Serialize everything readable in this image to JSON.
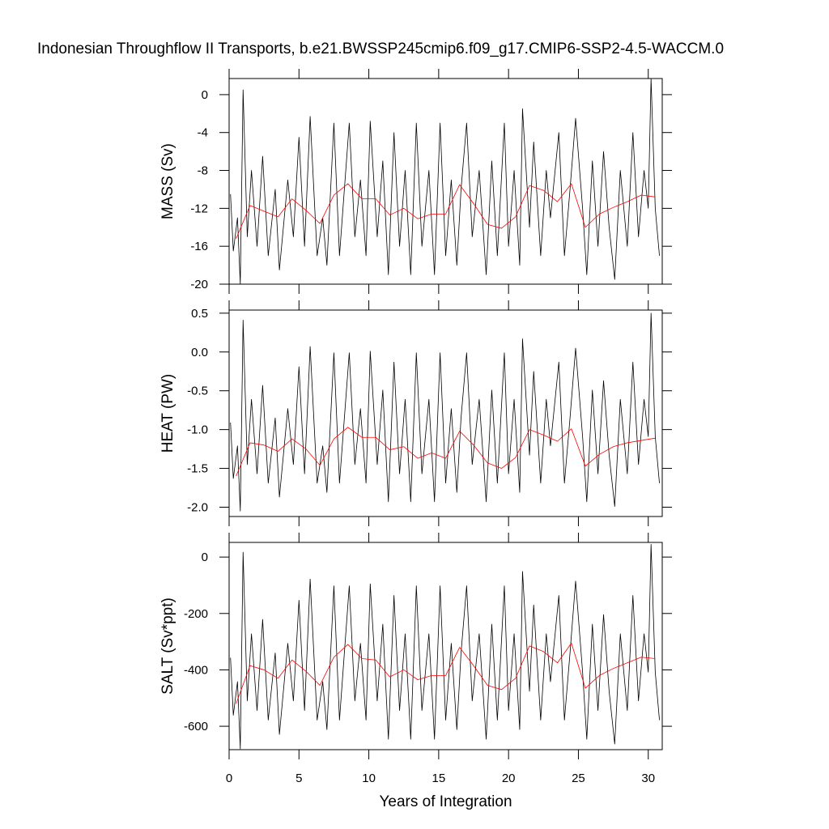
{
  "chart_data": [
    {
      "type": "line",
      "title": "Indonesian Throughflow II Transports, b.e21.BWSSP245cmip6.f09_g17.CMIP6-SSP2-4.5-WACCM.0",
      "y_label": "MASS (Sv)",
      "xlim": [
        0,
        31
      ],
      "xticks": [
        0,
        5,
        10,
        15,
        20,
        25,
        30
      ],
      "ylim": [
        -20,
        1.7
      ],
      "yticks": [
        0,
        -4,
        -8,
        -12,
        -16,
        -20
      ],
      "series": [
        {
          "color": "#000000",
          "x": [
            0.1,
            0.3,
            0.6,
            0.8,
            1.0,
            1.3,
            1.6,
            2.0,
            2.4,
            2.8,
            3.3,
            3.6,
            4.2,
            4.6,
            5.0,
            5.4,
            5.8,
            6.3,
            6.7,
            7.0,
            7.5,
            7.9,
            8.3,
            8.6,
            9.0,
            9.4,
            9.8,
            10.1,
            10.6,
            11.0,
            11.4,
            11.8,
            12.2,
            12.6,
            13.0,
            13.4,
            13.8,
            14.3,
            14.7,
            15.1,
            15.5,
            15.9,
            16.3,
            16.6,
            17.0,
            17.4,
            17.9,
            18.4,
            18.8,
            19.2,
            19.7,
            20.0,
            20.4,
            20.8,
            21.0,
            21.5,
            21.8,
            22.3,
            22.7,
            23.0,
            23.6,
            24.0,
            24.4,
            24.8,
            25.3,
            25.6,
            26.0,
            26.4,
            26.8,
            27.2,
            27.6,
            28.0,
            28.5,
            28.9,
            29.3,
            29.7,
            30.0,
            30.2,
            30.5,
            30.8
          ],
          "values": [
            -10.5,
            -16.5,
            -13,
            -20,
            0.5,
            -15,
            -8,
            -16,
            -6.5,
            -17,
            -10,
            -18.5,
            -9,
            -15,
            -4.5,
            -16,
            -2.3,
            -17,
            -13,
            -18,
            -3,
            -17,
            -9,
            -3,
            -15,
            -9,
            -17,
            -2.8,
            -15,
            -7,
            -19,
            -4,
            -16,
            -8,
            -19,
            -3,
            -16,
            -8,
            -19,
            -3,
            -17,
            -9,
            -18,
            -10,
            -3,
            -15,
            -8,
            -19,
            -7,
            -17,
            -3,
            -16,
            -8,
            -18,
            -1.5,
            -14,
            -5,
            -17,
            -8,
            -13,
            -4,
            -17,
            -10,
            -2.5,
            -12,
            -19,
            -7,
            -16,
            -6,
            -14,
            -19.5,
            -8,
            -16,
            -4,
            -15,
            -8,
            -12,
            1.7,
            -12,
            -17
          ]
        },
        {
          "color": "#ff0000",
          "x": [
            0.5,
            1.5,
            2.5,
            3.5,
            4.5,
            5.5,
            6.5,
            7.5,
            8.5,
            9.5,
            10.5,
            11.5,
            12.5,
            13.5,
            14.5,
            15.5,
            16.5,
            17.5,
            18.5,
            19.5,
            20.5,
            21.5,
            22.5,
            23.5,
            24.5,
            25.5,
            26.5,
            27.5,
            28.5,
            29.5,
            30.5
          ],
          "values": [
            -15.2,
            -11.7,
            -12.3,
            -12.9,
            -11,
            -12.2,
            -13.6,
            -10.6,
            -9.4,
            -11,
            -11,
            -12.7,
            -12,
            -13.1,
            -12.6,
            -12.6,
            -9.5,
            -11.5,
            -13.7,
            -14.1,
            -12.9,
            -9.6,
            -10.1,
            -11.3,
            -9.4,
            -14,
            -12.6,
            -11.9,
            -11.3,
            -10.6,
            -10.8
          ]
        }
      ]
    },
    {
      "type": "line",
      "y_label": "HEAT (PW)",
      "xlim": [
        0,
        31
      ],
      "xticks": [
        0,
        5,
        10,
        15,
        20,
        25,
        30
      ],
      "ylim": [
        -2.12,
        0.54
      ],
      "yticks": [
        0.5,
        {
          "value": 0,
          "label": "0.0"
        },
        -0.5,
        {
          "value": -1,
          "label": "-1.0"
        },
        -1.5,
        {
          "value": -2,
          "label": "-2.0"
        }
      ],
      "series": [
        {
          "color": "#000000",
          "x": [
            0.1,
            0.3,
            0.6,
            0.8,
            1.0,
            1.3,
            1.6,
            2.0,
            2.4,
            2.8,
            3.3,
            3.6,
            4.2,
            4.6,
            5.0,
            5.4,
            5.8,
            6.3,
            6.7,
            7.0,
            7.5,
            7.9,
            8.3,
            8.6,
            9.0,
            9.4,
            9.8,
            10.1,
            10.6,
            11.0,
            11.4,
            11.8,
            12.2,
            12.6,
            13.0,
            13.4,
            13.8,
            14.3,
            14.7,
            15.1,
            15.5,
            15.9,
            16.3,
            16.6,
            17.0,
            17.4,
            17.9,
            18.4,
            18.8,
            19.2,
            19.7,
            20.0,
            20.4,
            20.8,
            21.0,
            21.5,
            21.8,
            22.3,
            22.7,
            23.0,
            23.6,
            24.0,
            24.4,
            24.8,
            25.3,
            25.6,
            26.0,
            26.4,
            26.8,
            27.2,
            27.6,
            28.0,
            28.5,
            28.9,
            29.3,
            29.7,
            30.0,
            30.2,
            30.5,
            30.8
          ],
          "values": [
            -0.91,
            -1.63,
            -1.21,
            -2.05,
            0.41,
            -1.45,
            -0.61,
            -1.57,
            -0.43,
            -1.69,
            -0.85,
            -1.87,
            -0.73,
            -1.45,
            -0.19,
            -1.57,
            0.07,
            -1.69,
            -1.21,
            -1.81,
            -0.01,
            -1.69,
            -0.73,
            -0.01,
            -1.45,
            -0.73,
            -1.69,
            0.01,
            -1.45,
            -0.49,
            -1.93,
            -0.13,
            -1.57,
            -0.61,
            -1.93,
            -0.01,
            -1.57,
            -0.61,
            -1.93,
            -0.01,
            -1.69,
            -0.73,
            -1.81,
            -0.85,
            -0.01,
            -1.45,
            -0.61,
            -1.93,
            -0.49,
            -1.69,
            -0.01,
            -1.57,
            -0.61,
            -1.81,
            0.17,
            -1.33,
            -0.25,
            -1.69,
            -0.61,
            -1.21,
            -0.13,
            -1.69,
            -0.85,
            0.05,
            -1.09,
            -1.93,
            -0.49,
            -1.57,
            -0.37,
            -1.33,
            -1.99,
            -0.61,
            -1.57,
            -0.13,
            -1.45,
            -0.61,
            -1.09,
            0.5,
            -1.09,
            -1.69
          ]
        },
        {
          "color": "#ff0000",
          "x": [
            0.5,
            1.5,
            2.5,
            3.5,
            4.5,
            5.5,
            6.5,
            7.5,
            8.5,
            9.5,
            10.5,
            11.5,
            12.5,
            13.5,
            14.5,
            15.5,
            16.5,
            17.5,
            18.5,
            19.5,
            20.5,
            21.5,
            22.5,
            23.5,
            24.5,
            25.5,
            26.5,
            27.5,
            28.5,
            29.5,
            30.5
          ],
          "values": [
            -1.6,
            -1.17,
            -1.2,
            -1.28,
            -1.12,
            -1.25,
            -1.46,
            -1.12,
            -0.97,
            -1.1,
            -1.1,
            -1.26,
            -1.22,
            -1.37,
            -1.3,
            -1.37,
            -1.02,
            -1.2,
            -1.43,
            -1.5,
            -1.36,
            -1.0,
            -1.07,
            -1.15,
            -0.99,
            -1.47,
            -1.32,
            -1.22,
            -1.17,
            -1.14,
            -1.11
          ]
        }
      ]
    },
    {
      "type": "line",
      "y_label": "SALT (Sv*ppt)",
      "x_label": "Years of Integration",
      "xlim": [
        0,
        31
      ],
      "xticks": [
        0,
        5,
        10,
        15,
        20,
        25,
        30
      ],
      "ylim": [
        -683,
        52
      ],
      "yticks": [
        0,
        -200,
        -400,
        -600
      ],
      "series": [
        {
          "color": "#000000",
          "x": [
            0.1,
            0.3,
            0.6,
            0.8,
            1.0,
            1.3,
            1.6,
            2.0,
            2.4,
            2.8,
            3.3,
            3.6,
            4.2,
            4.6,
            5.0,
            5.4,
            5.8,
            6.3,
            6.7,
            7.0,
            7.5,
            7.9,
            8.3,
            8.6,
            9.0,
            9.4,
            9.8,
            10.1,
            10.6,
            11.0,
            11.4,
            11.8,
            12.2,
            12.6,
            13.0,
            13.4,
            13.8,
            14.3,
            14.7,
            15.1,
            15.5,
            15.9,
            16.3,
            16.6,
            17.0,
            17.4,
            17.9,
            18.4,
            18.8,
            19.2,
            19.7,
            20.0,
            20.4,
            20.8,
            21.0,
            21.5,
            21.8,
            22.3,
            22.7,
            23.0,
            23.6,
            24.0,
            24.4,
            24.8,
            25.3,
            25.6,
            26.0,
            26.4,
            26.8,
            27.2,
            27.6,
            28.0,
            28.5,
            28.9,
            29.3,
            29.7,
            30.0,
            30.2,
            30.5,
            30.8
          ],
          "values": [
            -357,
            -561,
            -442,
            -680,
            17,
            -510,
            -272,
            -544,
            -221,
            -578,
            -340,
            -629,
            -306,
            -510,
            -153,
            -544,
            -78,
            -578,
            -442,
            -612,
            -102,
            -578,
            -306,
            -102,
            -510,
            -306,
            -578,
            -95,
            -510,
            -238,
            -646,
            -136,
            -544,
            -272,
            -646,
            -102,
            -544,
            -272,
            -646,
            -102,
            -578,
            -306,
            -612,
            -340,
            -102,
            -510,
            -272,
            -646,
            -238,
            -578,
            -102,
            -544,
            -272,
            -612,
            -51,
            -476,
            -170,
            -578,
            -272,
            -442,
            -136,
            -578,
            -340,
            -85,
            -408,
            -646,
            -238,
            -544,
            -204,
            -476,
            -663,
            -272,
            -544,
            -136,
            -510,
            -272,
            -408,
            45,
            -408,
            -578
          ]
        },
        {
          "color": "#ff0000",
          "x": [
            0.5,
            1.5,
            2.5,
            3.5,
            4.5,
            5.5,
            6.5,
            7.5,
            8.5,
            9.5,
            10.5,
            11.5,
            12.5,
            13.5,
            14.5,
            15.5,
            16.5,
            17.5,
            18.5,
            19.5,
            20.5,
            21.5,
            22.5,
            23.5,
            24.5,
            25.5,
            26.5,
            27.5,
            28.5,
            29.5,
            30.5
          ],
          "values": [
            -520,
            -385,
            -400,
            -430,
            -365,
            -405,
            -455,
            -355,
            -310,
            -360,
            -365,
            -425,
            -400,
            -435,
            -420,
            -420,
            -320,
            -385,
            -455,
            -470,
            -430,
            -315,
            -335,
            -375,
            -305,
            -465,
            -420,
            -395,
            -375,
            -355,
            -360
          ]
        }
      ]
    }
  ]
}
